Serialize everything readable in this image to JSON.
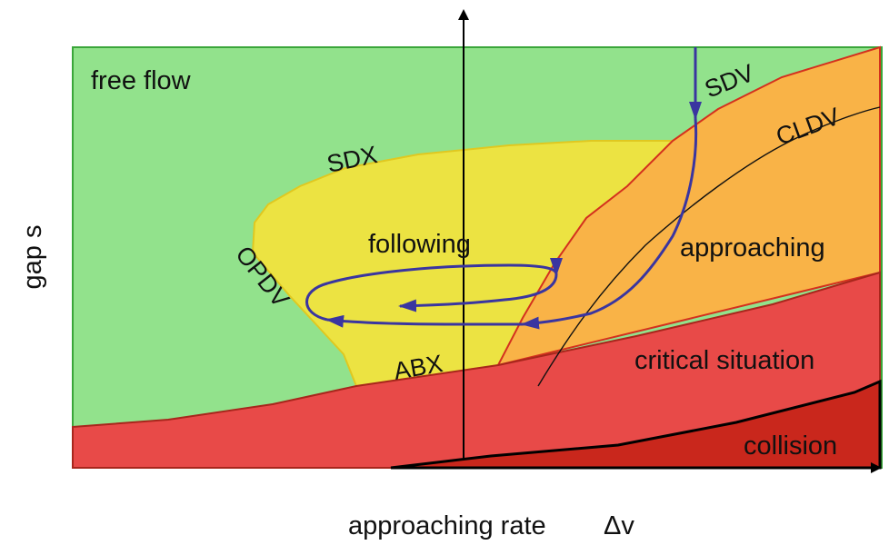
{
  "regions": {
    "free_flow": "free flow",
    "following": "following",
    "approaching": "approaching",
    "critical": "critical situation",
    "collision": "collision"
  },
  "boundaries": {
    "sdx": "SDX",
    "sdv": "SDV",
    "cldv": "CLDV",
    "opdv": "OPDV",
    "abx": "ABX"
  },
  "axes": {
    "x_label": "approaching rate",
    "x_symbol": "Δv",
    "y_label": "gap s"
  },
  "colors": {
    "free_flow": "#92e28c",
    "following": "#ece342",
    "approaching": "#f9b347",
    "critical": "#e84a48",
    "collision": "#c9271c",
    "trajectory": "#3a35a0",
    "frame_green": "#3aa63a",
    "boundary_red": "#d4301e"
  }
}
